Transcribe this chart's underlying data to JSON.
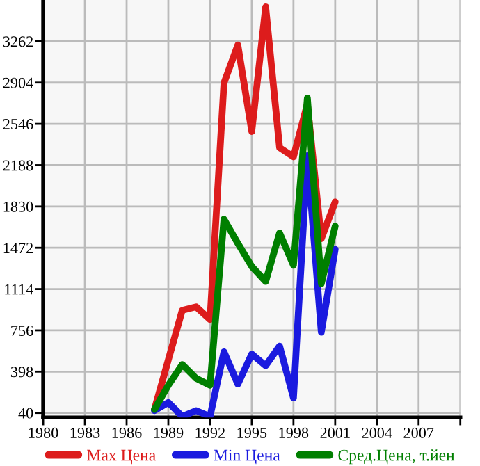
{
  "chart_data": {
    "type": "line",
    "x": [
      1988,
      1989,
      1990,
      1991,
      1992,
      1993,
      1994,
      1995,
      1996,
      1997,
      1998,
      1999,
      2000,
      2001
    ],
    "series": [
      {
        "name": "Max Цена",
        "color": "#dd1c1c",
        "values": [
          70,
          500,
          930,
          960,
          850,
          2900,
          3230,
          2480,
          3560,
          2340,
          2260,
          2720,
          1550,
          1870
        ]
      },
      {
        "name": "Min Цена",
        "color": "#1a1adf",
        "values": [
          60,
          130,
          10,
          60,
          10,
          570,
          290,
          550,
          450,
          620,
          170,
          2270,
          740,
          1460
        ]
      },
      {
        "name": "Сред.Цена, т.йен",
        "color": "#007f00",
        "values": [
          70,
          280,
          460,
          340,
          280,
          1720,
          1510,
          1310,
          1180,
          1600,
          1320,
          2770,
          1160,
          1660
        ]
      }
    ],
    "xlim": [
      1980,
      2010
    ],
    "xticks": [
      1980,
      1983,
      1986,
      1989,
      1992,
      1995,
      1998,
      2001,
      2004,
      2007,
      {
        "value": 2010,
        "label": null
      }
    ],
    "ylim": [
      0,
      3620
    ],
    "yticks": [
      40,
      398,
      756,
      1114,
      1472,
      1830,
      2188,
      2546,
      2904,
      3262
    ],
    "grid": true,
    "legend": "bottom",
    "marker": "none",
    "line_style": "solid"
  }
}
